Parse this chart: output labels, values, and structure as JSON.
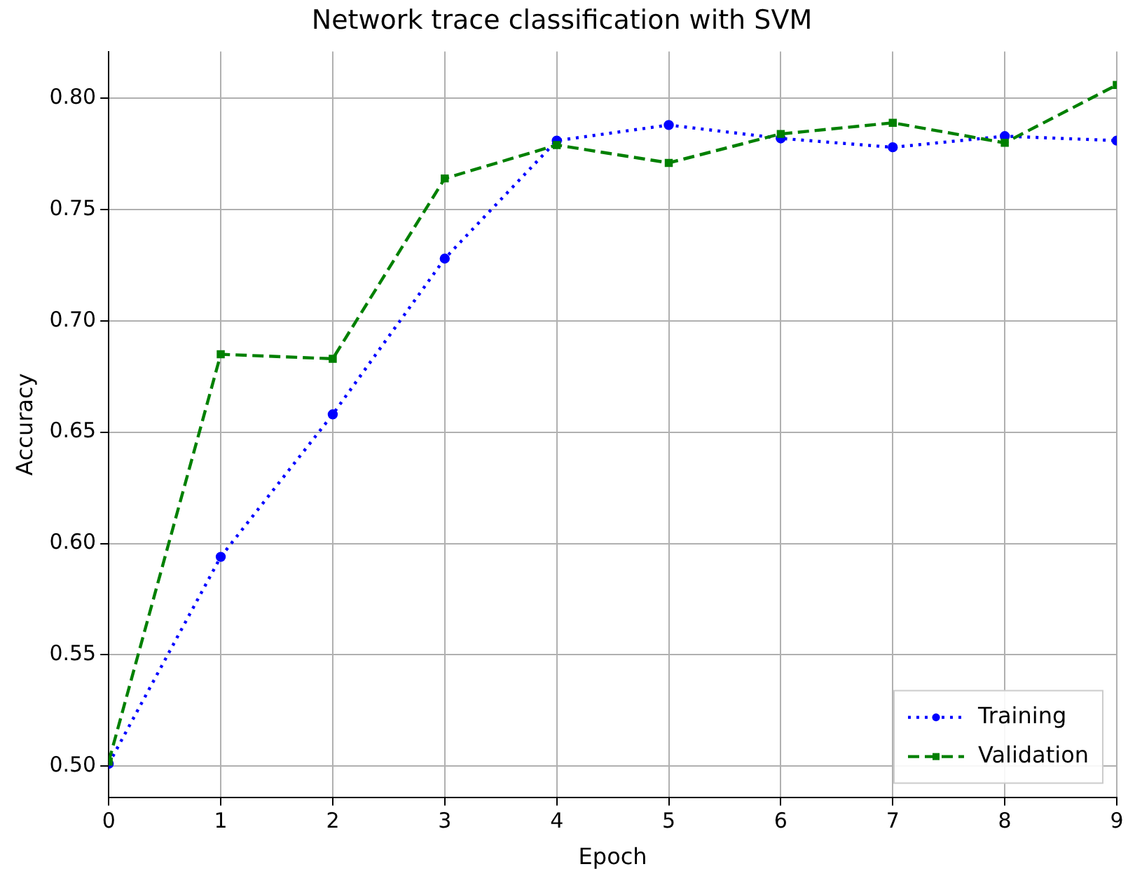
{
  "chart_data": {
    "type": "line",
    "title": "Network trace classification with SVM",
    "xlabel": "Epoch",
    "ylabel": "Accuracy",
    "x": [
      0,
      1,
      2,
      3,
      4,
      5,
      6,
      7,
      8,
      9
    ],
    "series": [
      {
        "name": "Training",
        "color": "#0000ff",
        "marker": "circle",
        "line_style": "dotted",
        "values": [
          0.501,
          0.594,
          0.658,
          0.728,
          0.781,
          0.788,
          0.782,
          0.778,
          0.783,
          0.781
        ]
      },
      {
        "name": "Validation",
        "color": "#008000",
        "marker": "square",
        "line_style": "dashed",
        "values": [
          0.502,
          0.685,
          0.683,
          0.764,
          0.779,
          0.771,
          0.784,
          0.789,
          0.78,
          0.806
        ]
      }
    ],
    "xlim": [
      0,
      9
    ],
    "xticks": [
      0,
      1,
      2,
      3,
      4,
      5,
      6,
      7,
      8,
      9
    ],
    "ylim": [
      0.486,
      0.821
    ],
    "yticks": [
      {
        "value": 0.5,
        "label": "0.50"
      },
      {
        "value": 0.55,
        "label": "0.55"
      },
      {
        "value": 0.6,
        "label": "0.60"
      },
      {
        "value": 0.65,
        "label": "0.65"
      },
      {
        "value": 0.7,
        "label": "0.70"
      },
      {
        "value": 0.75,
        "label": "0.75"
      },
      {
        "value": 0.8,
        "label": "0.80"
      }
    ],
    "grid": true,
    "legend": "bottom right"
  }
}
